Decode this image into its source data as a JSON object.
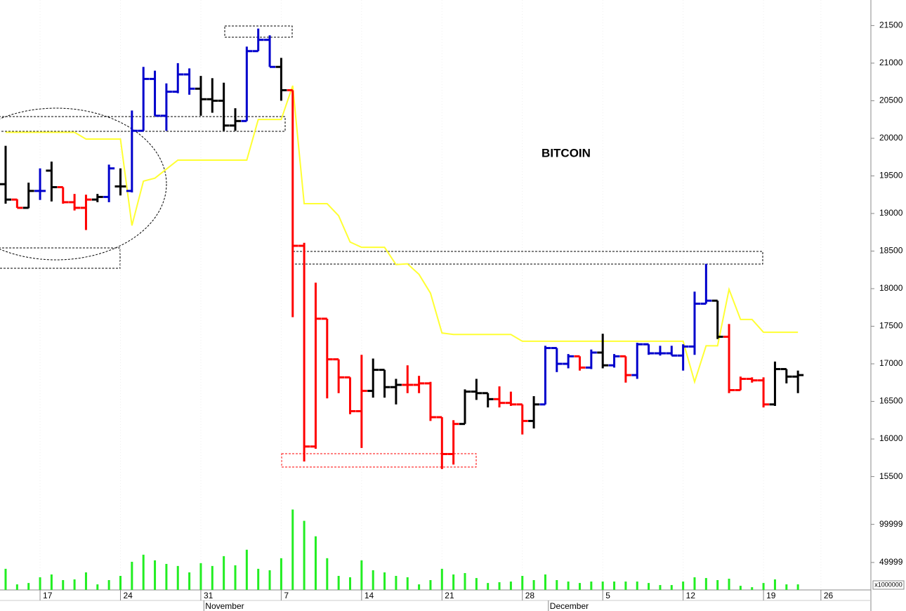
{
  "chart_data": {
    "type": "ohlc",
    "title": "BITCOIN",
    "categories": [
      null,
      null,
      null,
      "17",
      null,
      null,
      null,
      null,
      null,
      null,
      "24",
      null,
      null,
      null,
      null,
      null,
      null,
      "31",
      null,
      null,
      null,
      null,
      null,
      null,
      "7",
      null,
      null,
      null,
      null,
      null,
      null,
      "14",
      null,
      null,
      null,
      null,
      null,
      null,
      "21",
      null,
      null,
      null,
      null,
      null,
      null,
      "28",
      null,
      null,
      null,
      null,
      null,
      null,
      "5",
      null,
      null,
      null,
      null,
      null,
      null,
      "12",
      null,
      null,
      null,
      null,
      null,
      null,
      "19",
      null,
      null,
      null,
      null,
      "26"
    ],
    "months": [
      {
        "label": "November",
        "at": 18
      },
      {
        "label": "December",
        "at": 48
      }
    ],
    "open": [
      19390,
      19185,
      19075,
      19300,
      19570,
      19350,
      19150,
      19075,
      19185,
      19220,
      19360,
      19300,
      20100,
      20790,
      20300,
      20620,
      20850,
      20660,
      20520,
      20500,
      20170,
      20230,
      21160,
      21310,
      20950,
      20640,
      18570,
      15900,
      17600,
      17060,
      16820,
      16370,
      16640,
      16920,
      16690,
      16720,
      16720,
      16740,
      16290,
      15800,
      16200,
      16630,
      16610,
      16530,
      16480,
      16460,
      16240,
      16460,
      17210,
      17000,
      17100,
      16950,
      17150,
      16980,
      17100,
      16850,
      17260,
      17140,
      17140,
      17110,
      17230,
      17800,
      17840,
      17360,
      16650,
      16800,
      16780,
      16460,
      16930,
      16830,
      null,
      null
    ],
    "high": [
      19900,
      19190,
      19410,
      19600,
      19690,
      19350,
      19260,
      19250,
      19260,
      19650,
      19600,
      20370,
      20950,
      20900,
      20730,
      21000,
      20930,
      20830,
      20800,
      20740,
      20400,
      21220,
      21460,
      21370,
      21070,
      20640,
      18610,
      18080,
      17600,
      17060,
      16820,
      17120,
      17070,
      16920,
      16800,
      16980,
      16840,
      16760,
      16290,
      16250,
      16660,
      16800,
      16610,
      16700,
      16630,
      16460,
      16570,
      17240,
      17210,
      17130,
      17100,
      17190,
      17400,
      17130,
      17100,
      17280,
      17260,
      17240,
      17240,
      17260,
      17960,
      18330,
      17840,
      17530,
      16830,
      16820,
      16820,
      17030,
      16930,
      16910,
      null,
      null
    ],
    "low": [
      19130,
      19075,
      19070,
      19180,
      19160,
      19130,
      19040,
      18780,
      19150,
      19150,
      19240,
      19280,
      20100,
      20300,
      20100,
      20600,
      20580,
      20300,
      20340,
      20100,
      20100,
      20230,
      21160,
      20950,
      20500,
      17620,
      15700,
      15870,
      16540,
      16610,
      16330,
      15880,
      16550,
      16550,
      16460,
      16610,
      16610,
      16240,
      15600,
      15660,
      16200,
      16520,
      16420,
      16420,
      16440,
      16060,
      16140,
      16460,
      16890,
      16940,
      16910,
      16930,
      16940,
      16950,
      16750,
      16800,
      17120,
      17110,
      17110,
      16910,
      17120,
      17800,
      17330,
      16610,
      16650,
      16750,
      16420,
      16440,
      16740,
      16610,
      null,
      null
    ],
    "close": [
      19185,
      19075,
      19300,
      19300,
      19350,
      19150,
      19075,
      19185,
      19220,
      19600,
      19360,
      20100,
      20790,
      20300,
      20620,
      20850,
      20660,
      20520,
      20500,
      20170,
      20230,
      21160,
      21310,
      20950,
      20640,
      18570,
      15900,
      17600,
      17060,
      16820,
      16370,
      16640,
      16920,
      16690,
      16720,
      16720,
      16740,
      16290,
      15800,
      16200,
      16630,
      16610,
      16530,
      16480,
      16460,
      16240,
      16460,
      17210,
      17000,
      17100,
      16950,
      17150,
      16980,
      17100,
      16850,
      17260,
      17140,
      17140,
      17110,
      17230,
      17800,
      17840,
      17360,
      16650,
      16800,
      16780,
      16460,
      16930,
      16830,
      16850,
      null,
      null
    ],
    "bar_colors": [
      "#000000",
      "#ff0000",
      "#000000",
      "#0000cc",
      "#000000",
      "#ff0000",
      "#ff0000",
      "#ff0000",
      "#000000",
      "#0000cc",
      "#000000",
      "#0000cc",
      "#0000cc",
      "#0000cc",
      "#0000cc",
      "#0000cc",
      "#0000cc",
      "#000000",
      "#000000",
      "#000000",
      "#000000",
      "#0000cc",
      "#0000cc",
      "#0000cc",
      "#000000",
      "#ff0000",
      "#ff0000",
      "#ff0000",
      "#ff0000",
      "#ff0000",
      "#ff0000",
      "#ff0000",
      "#000000",
      "#000000",
      "#000000",
      "#ff0000",
      "#ff0000",
      "#ff0000",
      "#ff0000",
      "#ff0000",
      "#000000",
      "#000000",
      "#000000",
      "#ff0000",
      "#ff0000",
      "#ff0000",
      "#000000",
      "#0000cc",
      "#0000cc",
      "#0000cc",
      "#ff0000",
      "#0000cc",
      "#000000",
      "#0000cc",
      "#ff0000",
      "#0000cc",
      "#0000cc",
      "#0000cc",
      "#0000cc",
      "#0000cc",
      "#0000cc",
      "#0000cc",
      "#000000",
      "#ff0000",
      "#ff0000",
      "#ff0000",
      "#ff0000",
      "#000000",
      "#000000",
      "#000000",
      null,
      null
    ],
    "line": {
      "color": "#ffff33",
      "values": [
        20080,
        20080,
        20080,
        20080,
        20080,
        20080,
        20080,
        19990,
        19990,
        19990,
        19990,
        18840,
        19430,
        19470,
        19590,
        19710,
        19710,
        19710,
        19710,
        19710,
        19710,
        19710,
        20250,
        20250,
        20250,
        20700,
        19130,
        19130,
        19130,
        18970,
        18620,
        18550,
        18550,
        18550,
        18320,
        18330,
        18190,
        17940,
        17410,
        17390,
        17390,
        17390,
        17390,
        17390,
        17390,
        17300,
        17300,
        17300,
        17300,
        17300,
        17300,
        17300,
        17300,
        17300,
        17300,
        17300,
        17300,
        17300,
        17300,
        17300,
        16760,
        17240,
        17240,
        17990,
        17590,
        17590,
        17420,
        17420,
        17420,
        17420,
        null,
        null
      ]
    },
    "ylim": [
      15300,
      21840
    ],
    "yticks": [
      15500,
      16000,
      16500,
      17000,
      17500,
      18000,
      18500,
      19000,
      19500,
      20000,
      20500,
      21000,
      21500
    ],
    "volume": {
      "color": "#22ee22",
      "values": [
        41700,
        21300,
        23100,
        30600,
        34300,
        26900,
        27800,
        37000,
        21300,
        26900,
        32400,
        50900,
        60200,
        52800,
        48100,
        45400,
        37000,
        49100,
        45400,
        58300,
        46300,
        66700,
        41700,
        39800,
        55600,
        119400,
        104600,
        84300,
        55600,
        32400,
        30600,
        52800,
        39800,
        37000,
        32400,
        30600,
        21300,
        26900,
        41700,
        34300,
        36100,
        29600,
        23100,
        24100,
        25000,
        32400,
        26900,
        34300,
        26900,
        25000,
        23100,
        25000,
        25000,
        25000,
        25000,
        25000,
        23100,
        20400,
        20400,
        25000,
        30600,
        29600,
        26900,
        28700,
        19400,
        17600,
        23100,
        27800,
        21300,
        21300,
        null,
        null
      ],
      "ylim": [
        14000,
        130000
      ],
      "yticks": [
        49999,
        99999
      ],
      "unit_label": "x1000000"
    }
  }
}
